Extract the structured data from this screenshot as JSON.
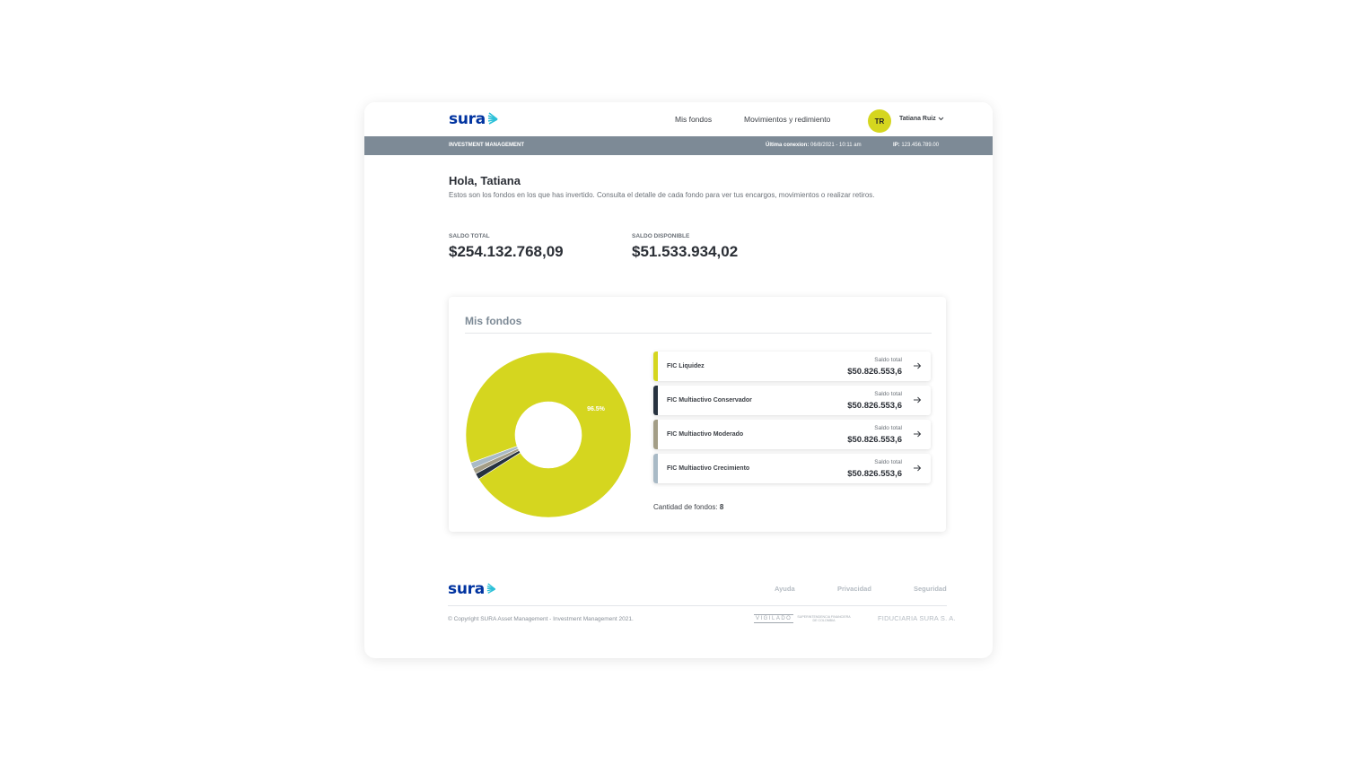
{
  "header": {
    "logo_text": "sura",
    "nav": [
      "Mis fondos",
      "Movimientos y redimiento"
    ],
    "avatar_initials": "TR",
    "user_name": "Tatiana Ruiz",
    "avatar_color": "#d5d61f",
    "brand_color": "#0033a0"
  },
  "statusbar": {
    "section": "INVESTMENT MANAGEMENT",
    "last_conn_label": "Última conexion:",
    "last_conn_value": "06/8/2021 - 10:11 am",
    "ip_label": "IP:",
    "ip_value": "123.456.789.00",
    "bg_color": "#7d8a96"
  },
  "greeting": {
    "title": "Hola, Tatiana",
    "subtitle": "Estos son los fondos en los que has invertido. Consulta el detalle de cada fondo para ver tus encargos, movimientos o realizar retiros."
  },
  "kpis": [
    {
      "label": "SALDO TOTAL",
      "value": "$254.132.768,09"
    },
    {
      "label": "SALDO DISPONIBLE",
      "value": "$51.533.934,02"
    }
  ],
  "card": {
    "title": "Mis fondos",
    "funds": [
      {
        "name": "FIC Liquidez",
        "balance_label": "Saldo total",
        "balance": "$50.826.553,6",
        "color": "#d5d61f"
      },
      {
        "name": "FIC Multiactivo Conservador",
        "balance_label": "Saldo total",
        "balance": "$50.826.553,6",
        "color": "#27323f"
      },
      {
        "name": "FIC Multiactivo Moderado",
        "balance_label": "Saldo total",
        "balance": "$50.826.553,6",
        "color": "#a39d86"
      },
      {
        "name": "FIC Multiactivo Crecimiento",
        "balance_label": "Saldo total",
        "balance": "$50.826.553,6",
        "color": "#a9bac6"
      }
    ],
    "count_label": "Cantidad de fondos:",
    "count_value": "8"
  },
  "chart_data": {
    "type": "pie",
    "categories": [
      "FIC Liquidez",
      "FIC Multiactivo Conservador",
      "FIC Multiactivo Moderado",
      "FIC Multiactivo Crecimiento"
    ],
    "values": [
      96.5,
      1.2,
      1.1,
      1.2
    ],
    "colors": [
      "#d5d61f",
      "#27323f",
      "#a39d86",
      "#a9bac6"
    ],
    "data_labels": [
      "96.5%"
    ],
    "title": "",
    "donut": true
  },
  "footer": {
    "logo_text": "sura",
    "links": [
      "Ayuda",
      "Privacidad",
      "Seguridad"
    ],
    "copyright": "© Copyright SURA Asset Management - Investment Management 2021.",
    "vigilado": "VIGILADO",
    "superintendencia_1": "SUPERINTENDENCIA FINANCIERA",
    "superintendencia_2": "DE COLOMBIA",
    "fiduciaria": "FIDUCIARIA SURA S. A."
  }
}
